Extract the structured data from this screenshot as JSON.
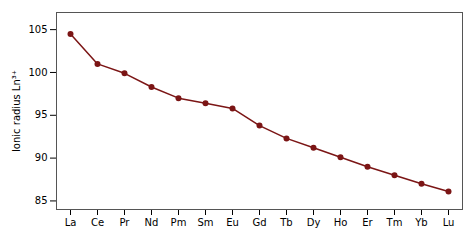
{
  "chart_data": {
    "type": "line",
    "categories": [
      "La",
      "Ce",
      "Pr",
      "Nd",
      "Pm",
      "Sm",
      "Eu",
      "Gd",
      "Tb",
      "Dy",
      "Ho",
      "Er",
      "Tm",
      "Yb",
      "Lu"
    ],
    "values": [
      104.5,
      101.0,
      99.9,
      98.3,
      97.0,
      96.4,
      95.8,
      93.8,
      92.3,
      91.2,
      90.1,
      89.0,
      88.0,
      87.0,
      86.1
    ],
    "color": "#7B1515",
    "marker": "circle",
    "ylabel": "Ionic radius Ln³⁺",
    "ylim": [
      84,
      107
    ],
    "yticks": [
      85,
      90,
      95,
      100,
      105
    ],
    "grid": false
  }
}
